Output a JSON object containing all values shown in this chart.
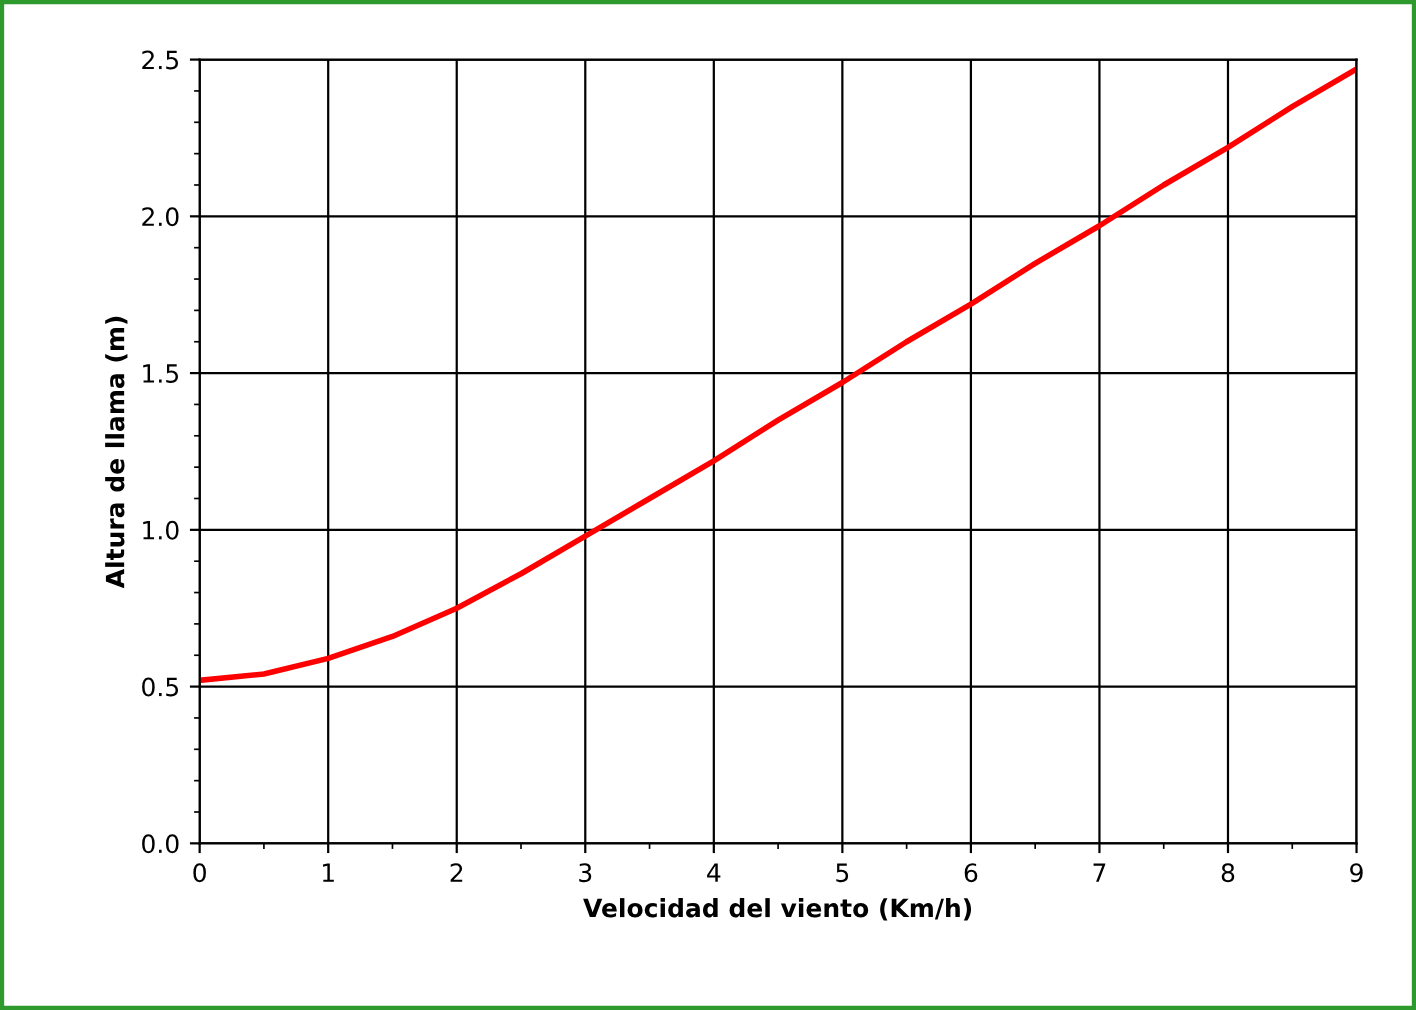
{
  "chart_data": {
    "type": "line",
    "xlabel": "Velocidad del viento (Km/h)",
    "ylabel": "Altura de llama (m)",
    "x": [
      0,
      0.5,
      1,
      1.5,
      2,
      2.5,
      3,
      3.5,
      4,
      4.5,
      5,
      5.5,
      6,
      6.5,
      7,
      7.5,
      8,
      8.5,
      9
    ],
    "series": [
      {
        "color": "#ff0000",
        "values": [
          0.52,
          0.54,
          0.59,
          0.66,
          0.75,
          0.86,
          0.98,
          1.1,
          1.22,
          1.35,
          1.47,
          1.6,
          1.72,
          1.85,
          1.97,
          2.1,
          2.22,
          2.35,
          2.47
        ]
      }
    ],
    "xlim": [
      0,
      9
    ],
    "xticks": [
      0,
      1,
      2,
      3,
      4,
      5,
      6,
      7,
      8,
      9
    ],
    "ylim": [
      0,
      2.5
    ],
    "yticks": [
      {
        "value": 0,
        "label": "0.0"
      },
      {
        "value": 0.5,
        "label": "0.5"
      },
      {
        "value": 1,
        "label": "1.0"
      },
      {
        "value": 1.5,
        "label": "1.5"
      },
      {
        "value": 2,
        "label": "2.0"
      },
      {
        "value": 2.5,
        "label": "2.5"
      }
    ],
    "grid": true,
    "legend": false,
    "marker": "none",
    "line_style": "solid"
  }
}
